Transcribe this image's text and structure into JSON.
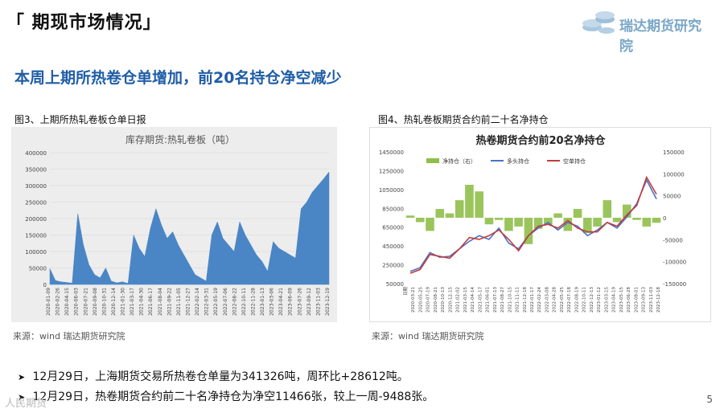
{
  "page": {
    "title": "「 期现市场情况」",
    "brand": "瑞达期货研究院",
    "headline": "本周上期所热卷仓单增加，前20名持仓净空减少",
    "page_number": "5",
    "watermark": "人民期货"
  },
  "left": {
    "caption": "图3、上期所热轧卷板仓单日报",
    "source": "来源：wind   瑞达期货研究院",
    "chart_title": "库存期货:热轧卷板（吨）"
  },
  "right": {
    "caption": "图4、热轧卷板期货合约前二十名净持仓",
    "source": "来源：wind   瑞达期货研究院",
    "chart_title": "热卷期货合约前20名净持仓"
  },
  "bullets": [
    "12月29日，上海期货交易所热卷仓单量为341326吨，周环比+28612吨。",
    "12月29日，热卷期货合约前二十名净持仓为净空11466张，较上一周-9488张。"
  ],
  "chart_data": [
    {
      "type": "area",
      "title": "库存期货:热轧卷板（吨）",
      "ylim": [
        0,
        400000
      ],
      "yticks": [
        "400000",
        "350000",
        "300000",
        "250000",
        "200000",
        "150000",
        "100000",
        "50000",
        "0"
      ],
      "xticks": [
        "2020-01-09",
        "2020-02-26",
        "2020-04-15",
        "2020-06-03",
        "2020-07-21",
        "2020-09-08",
        "2020-10-31",
        "2020-12-14",
        "2021-01-30",
        "2021-03-17",
        "2021-04-30",
        "2021-06-17",
        "2021-08-04",
        "2021-09-22",
        "2021-11-05",
        "2021-12-27",
        "2022-02-14",
        "2022-03-31",
        "2022-05-19",
        "2022-07-06",
        "2022-08-22",
        "2022-10-11",
        "2022-11-28",
        "2023-01-13",
        "2023-03-06",
        "2023-04-21",
        "2023-06-09",
        "2023-07-26",
        "2023-09-12",
        "2023-11-03",
        "2023-12-19"
      ],
      "color": "#4a86c5",
      "x": [
        0,
        2,
        4,
        6,
        8,
        10,
        12,
        14,
        16,
        18,
        20,
        22,
        24,
        26,
        28,
        30,
        32,
        34,
        36,
        38,
        40,
        42,
        44,
        46,
        48,
        50,
        52,
        54,
        56,
        58,
        60,
        62,
        64,
        66,
        68,
        70,
        72,
        74,
        76,
        78,
        80,
        82,
        84,
        86,
        88,
        90,
        92,
        94,
        96,
        98,
        100
      ],
      "values": [
        48000,
        12000,
        8000,
        6000,
        4000,
        215000,
        120000,
        60000,
        30000,
        20000,
        50000,
        10000,
        5000,
        8000,
        3000,
        150000,
        110000,
        85000,
        170000,
        230000,
        180000,
        140000,
        160000,
        120000,
        90000,
        60000,
        30000,
        20000,
        10000,
        150000,
        190000,
        140000,
        120000,
        100000,
        190000,
        150000,
        120000,
        90000,
        70000,
        40000,
        130000,
        110000,
        100000,
        90000,
        80000,
        230000,
        250000,
        280000,
        300000,
        320000,
        341326
      ]
    },
    {
      "type": "line",
      "title": "热卷期货合约前20名净持仓",
      "legend": [
        "净持仓（右）",
        "多头持仓",
        "空单持仓"
      ],
      "legend_placement": "top",
      "colors": [
        "#8fbf4a",
        "#4a72c8",
        "#c23b3b"
      ],
      "y_left_ticks": [
        "1450000",
        "1250000",
        "1050000",
        "850000",
        "650000",
        "450000",
        "250000",
        "50000"
      ],
      "y_right_ticks": [
        "150000",
        "100000",
        "50000",
        "0",
        "-50000",
        "-100000",
        "-150000"
      ],
      "xticks": [
        "日期",
        "2020-03-21",
        "2020-05-25",
        "2020-07-19",
        "2020-08-21",
        "2020-10-13",
        "2020-12-15",
        "2021-02-02",
        "2021-03-15",
        "2021-04-14",
        "2021-05-17",
        "2021-06-01",
        "2021-07-13",
        "2021-08-27",
        "2021-10-15",
        "2021-11-11",
        "2021-12-18",
        "2022-01-17",
        "2022-02-24",
        "2022-03-08",
        "2022-04-28",
        "2022-05-25",
        "2022-07-18",
        "2022-08-19",
        "2022-10-11",
        "2022-12-13",
        "2023-01-12",
        "2023-03-15",
        "2023-04-19",
        "2023-05-15",
        "2023-06-28",
        "2023-08-01",
        "2023-09-13",
        "2023-11-03",
        "2023-12-18"
      ],
      "x": [
        0,
        4,
        8,
        12,
        16,
        20,
        24,
        28,
        32,
        36,
        40,
        44,
        48,
        52,
        56,
        60,
        64,
        68,
        72,
        76,
        80,
        84,
        88,
        92,
        96,
        100
      ],
      "series": [
        {
          "name": "净持仓（右）",
          "values": [
            5000,
            -10000,
            -30000,
            20000,
            10000,
            40000,
            75000,
            60000,
            -15000,
            -5000,
            -30000,
            -20000,
            -60000,
            -25000,
            -15000,
            10000,
            -30000,
            20000,
            -35000,
            -20000,
            40000,
            -10000,
            30000,
            -5000,
            -20000,
            -11466
          ]
        },
        {
          "name": "多头持仓",
          "values": [
            180000,
            220000,
            380000,
            330000,
            340000,
            420000,
            500000,
            560000,
            520000,
            640000,
            480000,
            420000,
            560000,
            640000,
            700000,
            620000,
            700000,
            660000,
            560000,
            620000,
            700000,
            640000,
            760000,
            900000,
            1150000,
            950000
          ]
        },
        {
          "name": "空单持仓",
          "values": [
            160000,
            200000,
            360000,
            340000,
            320000,
            420000,
            540000,
            520000,
            560000,
            620000,
            520000,
            400000,
            560000,
            660000,
            680000,
            640000,
            720000,
            640000,
            600000,
            600000,
            700000,
            660000,
            780000,
            880000,
            1180000,
            1000000
          ]
        }
      ]
    }
  ]
}
